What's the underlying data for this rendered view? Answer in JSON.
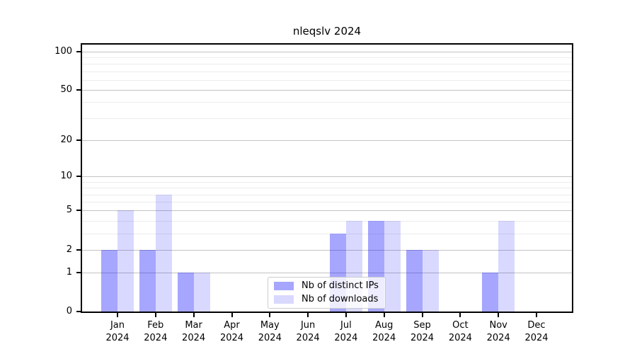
{
  "figure": {
    "title": "nleqslv 2024"
  },
  "chart_data": {
    "type": "bar",
    "title": "nleqslv 2024",
    "categories": [
      "Jan 2024",
      "Feb 2024",
      "Mar 2024",
      "Apr 2024",
      "May 2024",
      "Jun 2024",
      "Jul 2024",
      "Aug 2024",
      "Sep 2024",
      "Oct 2024",
      "Nov 2024",
      "Dec 2024"
    ],
    "series": [
      {
        "name": "Nb of distinct IPs",
        "color": "rgba(0,0,255,0.35)",
        "values": [
          2,
          2,
          1,
          0,
          0,
          0,
          3,
          4,
          2,
          0,
          1,
          0
        ]
      },
      {
        "name": "Nb of downloads",
        "color": "rgba(0,0,255,0.15)",
        "values": [
          5,
          7,
          1,
          0,
          0,
          0,
          4,
          4,
          2,
          0,
          4,
          0
        ]
      }
    ],
    "xlabel": "",
    "ylabel": "",
    "yscale": "log1p",
    "ylim": [
      0,
      113
    ],
    "yticks": [
      0,
      1,
      2,
      5,
      10,
      20,
      50,
      100
    ],
    "minor_gridlines": [
      3,
      4,
      6,
      7,
      8,
      9,
      30,
      40,
      60,
      70,
      80,
      90
    ],
    "grid": true,
    "legend_position": "lower center",
    "colors": {
      "major_grid": "#c3c3c3",
      "minor_grid": "#ececec",
      "axis": "#000000",
      "text": "#000000",
      "legend_border": "#cccccc",
      "background": "#ffffff"
    }
  }
}
